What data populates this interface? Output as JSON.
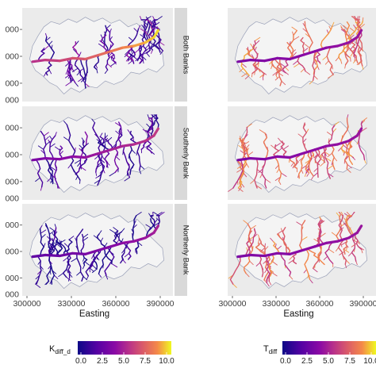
{
  "chart_data": {
    "type": "heatmap",
    "xlabel": "Easting",
    "x_ticks": [
      "300000",
      "330000",
      "360000",
      "390000"
    ],
    "y_ticks_partial": [
      "000",
      "000",
      "000",
      "000"
    ],
    "facets": [
      "Both Banks",
      "Southerly Bank",
      "Northerly Bank"
    ],
    "colormap": "plasma",
    "colors": {
      "low": "#0d0887",
      "mid": "#cc4778",
      "high": "#f0f921",
      "panel_bg": "#ebebeb",
      "strip_bg": "#d9d9d9"
    },
    "legends": [
      {
        "title_main": "K",
        "title_sub": "diff_d",
        "ticks": [
          "0.0",
          "2.5",
          "5.0",
          "7.5",
          "10.0"
        ],
        "range": [
          0,
          10
        ]
      },
      {
        "title_main": "T",
        "title_sub": "diff",
        "ticks": [
          "0.0",
          "2.5",
          "5.0",
          "7.5",
          "10.0"
        ],
        "range": [
          0,
          10
        ]
      }
    ]
  }
}
